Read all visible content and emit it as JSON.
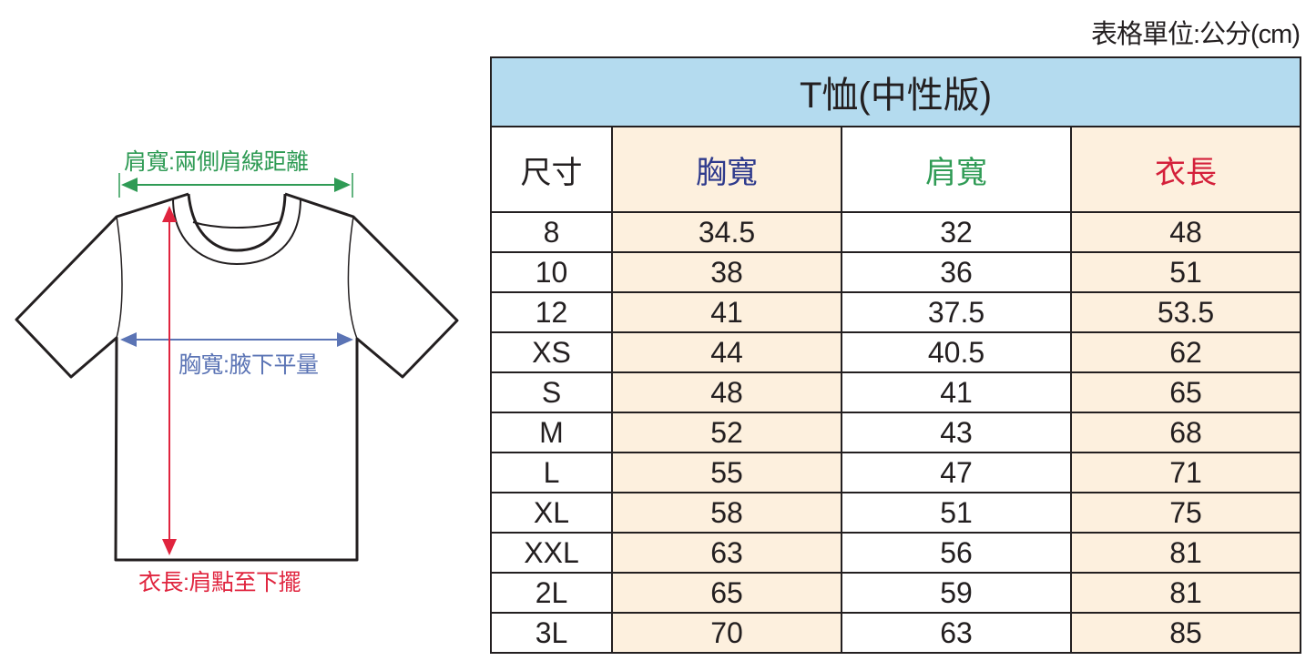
{
  "unit_note": "表格單位:公分(cm)",
  "diagram": {
    "shoulder_label": "肩寬:兩側肩線距離",
    "chest_label": "胸寬:腋下平量",
    "length_label": "衣長:肩點至下擺",
    "colors": {
      "shoulder": "#2f9b55",
      "chest": "#5b74b5",
      "length": "#e0243e"
    }
  },
  "table": {
    "title": "T恤(中性版)",
    "headers": [
      "尺寸",
      "胸寬",
      "肩寬",
      "衣長"
    ],
    "header_colors": [
      "#231f20",
      "#2e3a8c",
      "#2f9b55",
      "#d4203a"
    ],
    "title_bg": "#b4dbef",
    "alt_bg": "#fdf0de",
    "rows": [
      [
        "8",
        "34.5",
        "32",
        "48"
      ],
      [
        "10",
        "38",
        "36",
        "51"
      ],
      [
        "12",
        "41",
        "37.5",
        "53.5"
      ],
      [
        "XS",
        "44",
        "40.5",
        "62"
      ],
      [
        "S",
        "48",
        "41",
        "65"
      ],
      [
        "M",
        "52",
        "43",
        "68"
      ],
      [
        "L",
        "55",
        "47",
        "71"
      ],
      [
        "XL",
        "58",
        "51",
        "75"
      ],
      [
        "XXL",
        "63",
        "56",
        "81"
      ],
      [
        "2L",
        "65",
        "59",
        "81"
      ],
      [
        "3L",
        "70",
        "63",
        "85"
      ]
    ]
  }
}
